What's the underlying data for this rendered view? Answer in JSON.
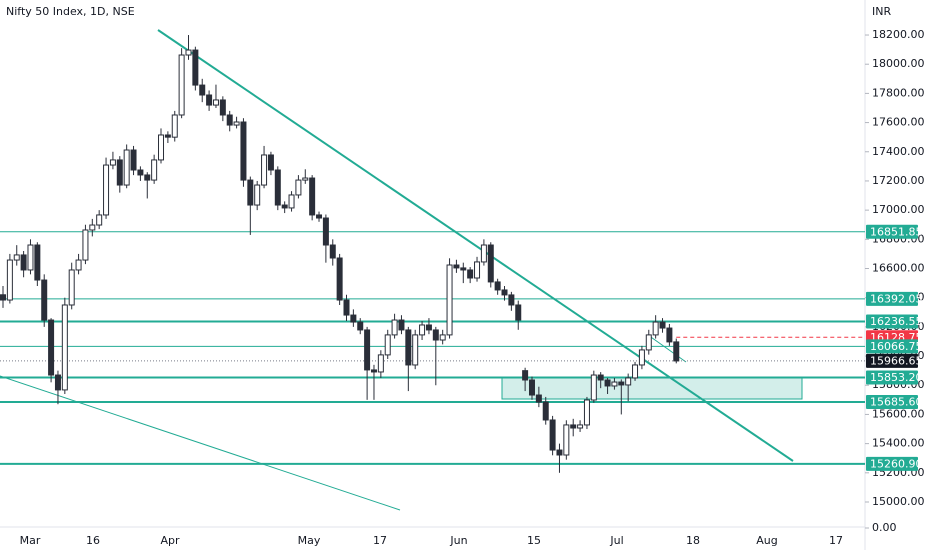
{
  "chart_data": {
    "type": "candlestick",
    "title": "Nifty 50 Index, 1D, NSE",
    "currency": "INR",
    "ylim": [
      14880,
      18440
    ],
    "yticks": [
      {
        "value": 15000,
        "label": "15000.00"
      },
      {
        "value": 15200,
        "label": "15200.00"
      },
      {
        "value": 15400,
        "label": "15400.00"
      },
      {
        "value": 15600,
        "label": "15600.00"
      },
      {
        "value": 15800,
        "label": "15800.00"
      },
      {
        "value": 16000,
        "label": "16000.00"
      },
      {
        "value": 16200,
        "label": "16200.00"
      },
      {
        "value": 16400,
        "label": "16400.00"
      },
      {
        "value": 16600,
        "label": "16600.00"
      },
      {
        "value": 16800,
        "label": "16800.00"
      },
      {
        "value": 17000,
        "label": "17000.00"
      },
      {
        "value": 17200,
        "label": "17200.00"
      },
      {
        "value": 17400,
        "label": "17400.00"
      },
      {
        "value": 17600,
        "label": "17600.00"
      },
      {
        "value": 17800,
        "label": "17800.00"
      },
      {
        "value": 18000,
        "label": "18000.00"
      },
      {
        "value": 18200,
        "label": "18200.00"
      }
    ],
    "volume_tick": {
      "value": 0,
      "label": "0.00"
    },
    "x_tick_labels": [
      "Mar",
      "16",
      "Apr",
      "May",
      "17",
      "Jun",
      "15",
      "Jul",
      "18",
      "Aug",
      "17"
    ],
    "up_color": "#ffffff",
    "down_color": "#2a2e39",
    "candles": [
      [
        16420,
        16480,
        16330,
        16384
      ],
      [
        16384,
        16700,
        16360,
        16658
      ],
      [
        16658,
        16760,
        16620,
        16693
      ],
      [
        16693,
        16720,
        16540,
        16590
      ],
      [
        16590,
        16800,
        16560,
        16761
      ],
      [
        16761,
        16780,
        16480,
        16521
      ],
      [
        16521,
        16560,
        16200,
        16247
      ],
      [
        16247,
        16260,
        15820,
        15870
      ],
      [
        15870,
        15900,
        15670,
        15768
      ],
      [
        15768,
        16400,
        15740,
        16350
      ],
      [
        16350,
        16640,
        16320,
        16590
      ],
      [
        16590,
        16700,
        16560,
        16658
      ],
      [
        16658,
        16900,
        16630,
        16864
      ],
      [
        16864,
        16940,
        16820,
        16898
      ],
      [
        16898,
        17000,
        16870,
        16967
      ],
      [
        16967,
        17360,
        16940,
        17309
      ],
      [
        17309,
        17400,
        17280,
        17344
      ],
      [
        17344,
        17370,
        17120,
        17172
      ],
      [
        17172,
        17450,
        17150,
        17412
      ],
      [
        17412,
        17440,
        17240,
        17275
      ],
      [
        17275,
        17300,
        17200,
        17241
      ],
      [
        17241,
        17260,
        17080,
        17206
      ],
      [
        17206,
        17380,
        17180,
        17344
      ],
      [
        17344,
        17560,
        17320,
        17515
      ],
      [
        17515,
        17540,
        17460,
        17500
      ],
      [
        17500,
        17680,
        17470,
        17652
      ],
      [
        17652,
        18110,
        17630,
        18063
      ],
      [
        18063,
        18200,
        18030,
        18097
      ],
      [
        18097,
        18120,
        17820,
        17857
      ],
      [
        17857,
        17900,
        17740,
        17789
      ],
      [
        17789,
        17820,
        17680,
        17720
      ],
      [
        17720,
        17860,
        17700,
        17755
      ],
      [
        17755,
        17780,
        17610,
        17652
      ],
      [
        17652,
        17680,
        17540,
        17583
      ],
      [
        17583,
        17640,
        17560,
        17604
      ],
      [
        17604,
        17630,
        17160,
        17206
      ],
      [
        17206,
        17230,
        16830,
        17035
      ],
      [
        17035,
        17200,
        17000,
        17172
      ],
      [
        17172,
        17440,
        17150,
        17378
      ],
      [
        17378,
        17400,
        17240,
        17275
      ],
      [
        17275,
        17300,
        17000,
        17035
      ],
      [
        17035,
        17060,
        16980,
        17015
      ],
      [
        17015,
        17130,
        16990,
        17104
      ],
      [
        17104,
        17240,
        17080,
        17206
      ],
      [
        17206,
        17280,
        17180,
        17220
      ],
      [
        17220,
        17240,
        16930,
        16967
      ],
      [
        16967,
        16990,
        16920,
        16946
      ],
      [
        16946,
        16970,
        16640,
        16761
      ],
      [
        16761,
        16800,
        16620,
        16672
      ],
      [
        16672,
        16700,
        16350,
        16384
      ],
      [
        16384,
        16420,
        16240,
        16281
      ],
      [
        16281,
        16320,
        16200,
        16233
      ],
      [
        16233,
        16260,
        16150,
        16179
      ],
      [
        16179,
        16200,
        15700,
        15905
      ],
      [
        15905,
        15940,
        15700,
        15891
      ],
      [
        15891,
        16040,
        15850,
        16008
      ],
      [
        16008,
        16180,
        15980,
        16145
      ],
      [
        16145,
        16290,
        16120,
        16247
      ],
      [
        16247,
        16280,
        16150,
        16179
      ],
      [
        16179,
        16200,
        15760,
        15939
      ],
      [
        15939,
        16180,
        15910,
        16145
      ],
      [
        16145,
        16240,
        16110,
        16213
      ],
      [
        16213,
        16260,
        16150,
        16179
      ],
      [
        16179,
        16200,
        15800,
        16110
      ],
      [
        16110,
        16180,
        16080,
        16145
      ],
      [
        16145,
        16670,
        16120,
        16624
      ],
      [
        16624,
        16660,
        16570,
        16604
      ],
      [
        16604,
        16640,
        16500,
        16590
      ],
      [
        16590,
        16610,
        16500,
        16535
      ],
      [
        16535,
        16680,
        16510,
        16645
      ],
      [
        16645,
        16800,
        16620,
        16761
      ],
      [
        16761,
        16780,
        16470,
        16508
      ],
      [
        16508,
        16530,
        16420,
        16453
      ],
      [
        16453,
        16480,
        16380,
        16419
      ],
      [
        16419,
        16440,
        16310,
        16350
      ],
      [
        16350,
        16380,
        16180,
        16247
      ],
      [
        15900,
        15920,
        15760,
        15836
      ],
      [
        15836,
        15860,
        15700,
        15733
      ],
      [
        15733,
        15790,
        15650,
        15685
      ],
      [
        15685,
        15720,
        15530,
        15562
      ],
      [
        15562,
        15590,
        15320,
        15356
      ],
      [
        15356,
        15400,
        15200,
        15322
      ],
      [
        15322,
        15560,
        15290,
        15528
      ],
      [
        15528,
        15570,
        15450,
        15507
      ],
      [
        15507,
        15560,
        15480,
        15528
      ],
      [
        15528,
        15720,
        15500,
        15699
      ],
      [
        15699,
        15900,
        15680,
        15870
      ],
      [
        15870,
        15890,
        15780,
        15836
      ],
      [
        15836,
        15850,
        15740,
        15795
      ],
      [
        15795,
        15850,
        15770,
        15822
      ],
      [
        15822,
        15840,
        15600,
        15802
      ],
      [
        15802,
        15880,
        15690,
        15850
      ],
      [
        15850,
        15960,
        15830,
        15939
      ],
      [
        15939,
        16070,
        15910,
        16042
      ],
      [
        16042,
        16180,
        16010,
        16145
      ],
      [
        16145,
        16280,
        16120,
        16233
      ],
      [
        16233,
        16260,
        16160,
        16192
      ],
      [
        16192,
        16220,
        16070,
        16097
      ],
      [
        16097,
        16120,
        15950,
        15966.65
      ]
    ],
    "price_lines": [
      {
        "value": 16851.85,
        "color": "#22ab94"
      },
      {
        "value": 16392.05,
        "color": "#22ab94"
      },
      {
        "value": 16236.55,
        "color": "#22ab94"
      },
      {
        "value": 16128.75,
        "color": "#f23645"
      },
      {
        "value": 16066.75,
        "color": "#22ab94"
      },
      {
        "value": 15966.65,
        "color": "#131722"
      },
      {
        "value": 15853.2,
        "label": "15853.20",
        "color": "#22ab94"
      },
      {
        "value": 15685.6,
        "label": "15685.60",
        "color": "#22ab94"
      },
      {
        "value": 15260.9,
        "label": "15260.90",
        "color": "#22ab94"
      }
    ]
  }
}
